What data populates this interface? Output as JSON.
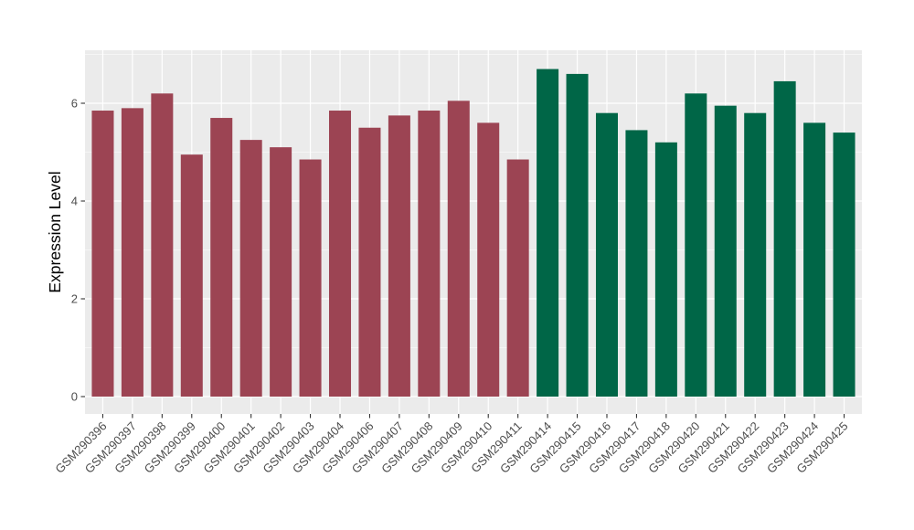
{
  "chart_data": {
    "type": "bar",
    "title": "",
    "xlabel": "",
    "ylabel": "Expression Level",
    "categories": [
      "GSM290396",
      "GSM290397",
      "GSM290398",
      "GSM290399",
      "GSM290400",
      "GSM290401",
      "GSM290402",
      "GSM290403",
      "GSM290404",
      "GSM290406",
      "GSM290407",
      "GSM290408",
      "GSM290409",
      "GSM290410",
      "GSM290411",
      "GSM290414",
      "GSM290415",
      "GSM290416",
      "GSM290417",
      "GSM290418",
      "GSM290420",
      "GSM290421",
      "GSM290422",
      "GSM290423",
      "GSM290424",
      "GSM290425"
    ],
    "values": [
      5.85,
      5.9,
      6.2,
      4.95,
      5.7,
      5.25,
      5.1,
      4.85,
      5.85,
      5.5,
      5.75,
      5.85,
      6.05,
      5.6,
      4.85,
      6.7,
      6.6,
      5.8,
      5.45,
      5.2,
      6.2,
      5.95,
      5.8,
      6.45,
      5.6,
      5.4
    ],
    "group_of_bar": [
      0,
      0,
      0,
      0,
      0,
      0,
      0,
      0,
      0,
      0,
      0,
      0,
      0,
      0,
      0,
      1,
      1,
      1,
      1,
      1,
      1,
      1,
      1,
      1,
      1,
      1
    ],
    "groups": [
      {
        "name": "maroon-group",
        "color": "#9C4453"
      },
      {
        "name": "green-group",
        "color": "#006647"
      }
    ],
    "y_ticks": [
      0,
      2,
      4,
      6
    ],
    "y_minor_ticks": [
      1,
      3,
      5,
      7
    ],
    "ylim": [
      0,
      7.07
    ],
    "x_label_rotation_deg": 45,
    "grid": true,
    "legend": "none",
    "colors": {
      "panel_background": "#EBEBEB",
      "grid_line": "#FFFFFF",
      "tick_mark": "#333333",
      "tick_label": "#4D4D4D",
      "axis_title": "#000000",
      "figure_background": "#FFFFFF"
    }
  }
}
